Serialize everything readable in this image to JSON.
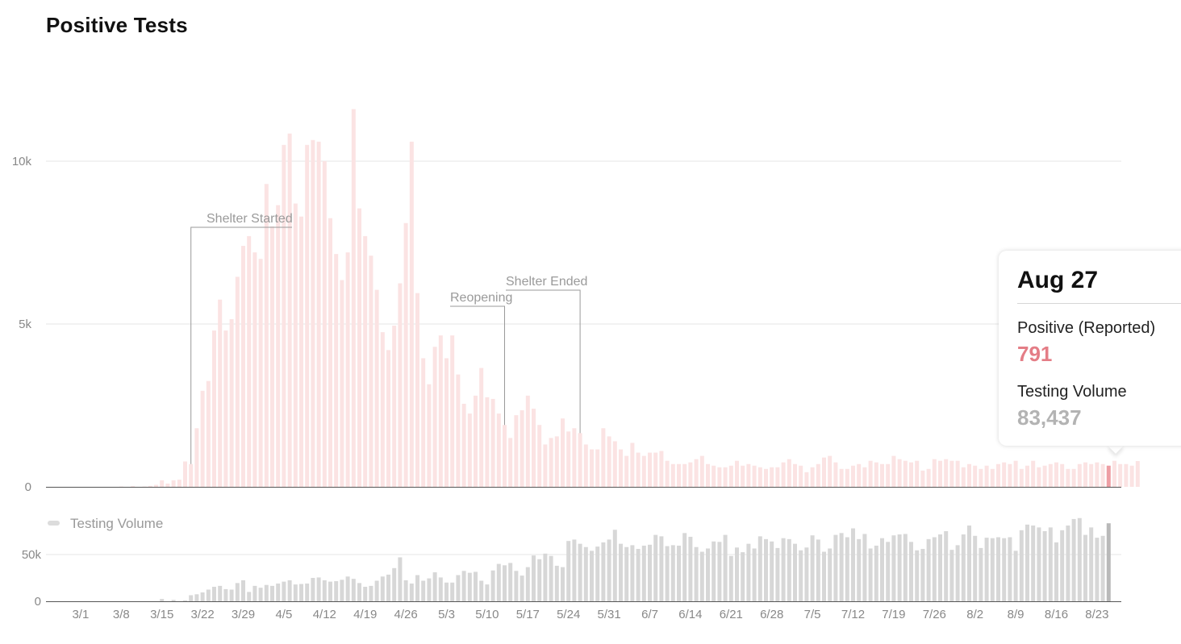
{
  "colors": {
    "positive": "#fbe3e3",
    "positive_highlight": "#ee9ea4",
    "positive_text": "#e47d86",
    "volume": "#d7d7d7",
    "volume_highlight": "#b9b9b9",
    "volume_text": "#b3b3b3",
    "axis": "#555555",
    "grid": "#e6e6e6",
    "label": "#888888",
    "annotation_line": "#9a9a9a"
  },
  "chart_data": [
    {
      "type": "bar",
      "title": "Positive Tests",
      "x_start": "3/1",
      "x_end": "8/27",
      "ylim": [
        0,
        12000
      ],
      "yticks": [
        {
          "value": 0,
          "label": "0"
        },
        {
          "value": 5000,
          "label": "5k"
        },
        {
          "value": 10000,
          "label": "10k"
        }
      ],
      "grid": true,
      "highlight_index": 179,
      "annotations": [
        {
          "label": "Shelter Started",
          "index": 21
        },
        {
          "label": "Reopening",
          "index": 75
        },
        {
          "label": "Shelter Ended",
          "index": 88
        }
      ],
      "values": [
        0,
        0,
        0,
        0,
        0,
        0,
        0,
        0,
        0,
        10,
        0,
        20,
        0,
        10,
        30,
        60,
        200,
        100,
        200,
        220,
        780,
        700,
        1800,
        2950,
        3250,
        4800,
        5750,
        4800,
        5150,
        6450,
        7400,
        7700,
        7200,
        7000,
        9300,
        8000,
        8650,
        10500,
        10850,
        8700,
        8300,
        10500,
        10650,
        10600,
        10000,
        8250,
        7150,
        6350,
        7200,
        11600,
        8550,
        7700,
        7100,
        6050,
        4750,
        4200,
        4950,
        6250,
        8100,
        10600,
        5950,
        3950,
        3150,
        4300,
        4650,
        3950,
        4650,
        3450,
        2550,
        2250,
        2800,
        3650,
        2750,
        2700,
        2250,
        1900,
        1500,
        2200,
        2350,
        2800,
        2400,
        1900,
        1300,
        1500,
        1550,
        2100,
        1700,
        1800,
        1650,
        1300,
        1150,
        1150,
        1800,
        1550,
        1400,
        1150,
        950,
        1350,
        1050,
        950,
        1050,
        1050,
        1100,
        800,
        700,
        700,
        700,
        750,
        850,
        950,
        700,
        650,
        600,
        600,
        650,
        800,
        650,
        700,
        650,
        600,
        550,
        600,
        600,
        750,
        850,
        700,
        650,
        450,
        600,
        700,
        900,
        950,
        750,
        550,
        550,
        650,
        700,
        600,
        800,
        750,
        700,
        700,
        950,
        850,
        800,
        750,
        800,
        500,
        550,
        850,
        800,
        850,
        800,
        800,
        600,
        700,
        650,
        550,
        650,
        550,
        700,
        750,
        700,
        800,
        550,
        650,
        800,
        600,
        650,
        700,
        750,
        700,
        550,
        550,
        700,
        750,
        700,
        750,
        700,
        650,
        800,
        700,
        700,
        650,
        791
      ]
    },
    {
      "type": "bar",
      "series": [
        {
          "name": "Testing Volume"
        }
      ],
      "ylim": [
        0,
        100000
      ],
      "yticks": [
        {
          "value": 0,
          "label": "0"
        },
        {
          "value": 50000,
          "label": "50k"
        }
      ],
      "grid": true,
      "xticks": [
        "3/1",
        "3/8",
        "3/15",
        "3/22",
        "3/29",
        "4/5",
        "4/12",
        "4/19",
        "4/26",
        "5/3",
        "5/10",
        "5/17",
        "5/24",
        "5/31",
        "6/7",
        "6/14",
        "6/21",
        "6/28",
        "7/5",
        "7/12",
        "7/19",
        "7/26",
        "8/2",
        "8/9",
        "8/16",
        "8/23"
      ],
      "values": [
        0,
        0,
        0,
        0,
        0,
        0,
        0,
        0,
        0,
        0,
        0,
        0,
        0,
        0,
        0,
        0,
        2500,
        0,
        1500,
        0,
        1000,
        6500,
        7500,
        9500,
        12500,
        15500,
        16500,
        13000,
        12500,
        19500,
        22500,
        10000,
        16500,
        14500,
        17500,
        16500,
        19000,
        21000,
        22500,
        18000,
        18500,
        19000,
        25000,
        25500,
        22500,
        21000,
        21500,
        23000,
        26500,
        24000,
        19500,
        15500,
        16500,
        22000,
        26500,
        28500,
        35500,
        47000,
        22500,
        19000,
        28000,
        22000,
        24500,
        31000,
        25500,
        20000,
        20000,
        28000,
        32500,
        30500,
        31500,
        22000,
        18000,
        33000,
        40000,
        38500,
        41000,
        32500,
        27500,
        36500,
        49000,
        45000,
        51000,
        48500,
        38000,
        36500,
        64500,
        66000,
        61500,
        58000,
        54000,
        58500,
        63000,
        66000,
        76500,
        61500,
        58000,
        60000,
        56000,
        59500,
        60500,
        71000,
        69500,
        59000,
        60000,
        59500,
        73000,
        69000,
        58000,
        53000,
        56500,
        64000,
        63500,
        71000,
        48500,
        57500,
        52500,
        61500,
        56500,
        69500,
        66500,
        64000,
        57000,
        67500,
        66500,
        61500,
        54500,
        57500,
        70500,
        66000,
        53000,
        56500,
        71000,
        73000,
        68500,
        78000,
        66500,
        72000,
        56500,
        59500,
        67500,
        63500,
        70500,
        71500,
        72000,
        63500,
        54500,
        56000,
        66500,
        68500,
        71500,
        75000,
        55000,
        60000,
        71500,
        81000,
        70000,
        57000,
        68000,
        67500,
        68500,
        67500,
        68500,
        54000,
        76000,
        82000,
        81000,
        79000,
        75000,
        79000,
        63000,
        76000,
        81000,
        88000,
        89000,
        71000,
        79000,
        68000,
        70000,
        83437
      ]
    }
  ],
  "tooltip": {
    "date": "Aug 27",
    "positive_label": "Positive (Reported)",
    "positive_value": "791",
    "volume_label": "Testing Volume",
    "volume_value": "83,437"
  }
}
